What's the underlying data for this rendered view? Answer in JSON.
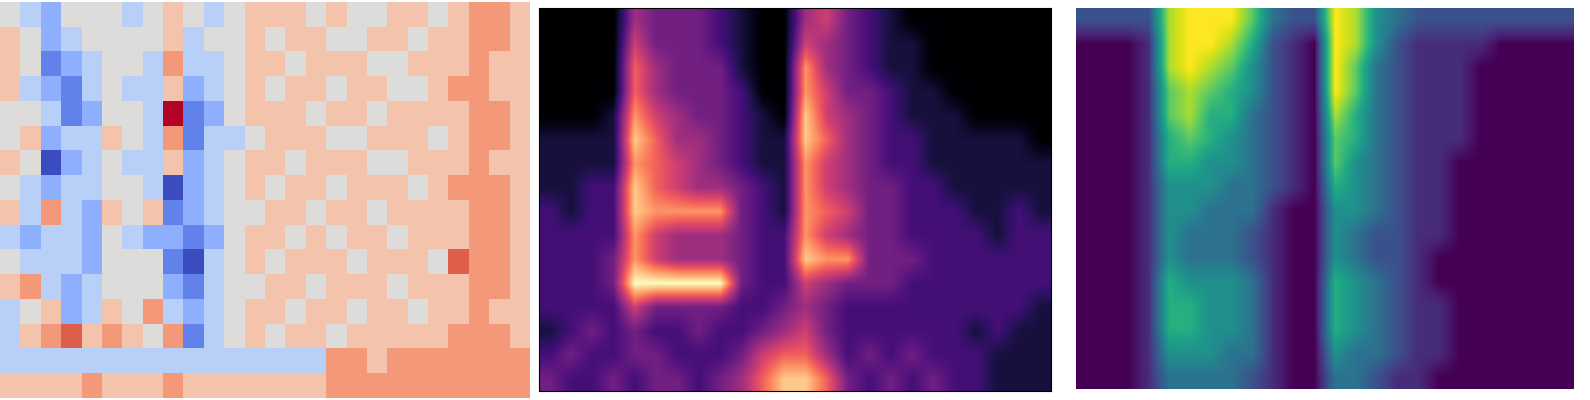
{
  "chart_data": [
    {
      "type": "heatmap",
      "color": "coolwarm",
      "tick_labels": false,
      "cells": [
        [
          0,
          -1,
          -2,
          0,
          0,
          0,
          -1,
          0,
          1,
          0,
          -1,
          0,
          1,
          1,
          1,
          0,
          1,
          0,
          0,
          1,
          1,
          0,
          1,
          2,
          2,
          1
        ],
        [
          1,
          0,
          -2,
          -1,
          0,
          0,
          0,
          0,
          1,
          -1,
          0,
          0,
          1,
          0,
          1,
          1,
          0,
          0,
          1,
          1,
          0,
          1,
          1,
          2,
          2,
          1
        ],
        [
          1,
          0,
          -3,
          -2,
          -1,
          0,
          0,
          -1,
          2,
          -1,
          -1,
          0,
          1,
          1,
          0,
          1,
          1,
          1,
          0,
          0,
          1,
          1,
          1,
          2,
          1,
          1
        ],
        [
          1,
          -1,
          -2,
          -3,
          -1,
          0,
          -1,
          -1,
          1,
          -2,
          -1,
          0,
          1,
          0,
          1,
          1,
          0,
          1,
          1,
          0,
          0,
          1,
          2,
          2,
          1,
          1
        ],
        [
          0,
          0,
          -1,
          -3,
          -2,
          0,
          0,
          -1,
          4,
          -3,
          -2,
          0,
          1,
          1,
          1,
          0,
          1,
          1,
          0,
          1,
          1,
          1,
          1,
          2,
          2,
          1
        ],
        [
          0,
          1,
          -2,
          -1,
          -1,
          1,
          0,
          -1,
          2,
          -3,
          -1,
          -1,
          0,
          1,
          1,
          1,
          0,
          0,
          1,
          1,
          1,
          0,
          1,
          2,
          2,
          1
        ],
        [
          1,
          0,
          -4,
          -2,
          -1,
          0,
          -1,
          -1,
          1,
          -2,
          -1,
          0,
          1,
          1,
          0,
          1,
          1,
          1,
          0,
          0,
          1,
          1,
          1,
          2,
          1,
          1
        ],
        [
          0,
          -1,
          -2,
          -1,
          -1,
          0,
          0,
          -1,
          -4,
          -2,
          -1,
          0,
          1,
          0,
          1,
          1,
          0,
          1,
          1,
          1,
          0,
          1,
          2,
          2,
          2,
          1
        ],
        [
          1,
          -1,
          2,
          -1,
          -2,
          1,
          0,
          1,
          -3,
          -2,
          -1,
          0,
          0,
          1,
          1,
          0,
          1,
          1,
          0,
          1,
          1,
          1,
          1,
          2,
          2,
          1
        ],
        [
          -1,
          -2,
          -1,
          -1,
          -2,
          0,
          -1,
          -2,
          -2,
          -3,
          -2,
          0,
          1,
          1,
          0,
          1,
          0,
          1,
          1,
          0,
          1,
          1,
          1,
          2,
          2,
          1
        ],
        [
          0,
          -1,
          -1,
          -1,
          -2,
          0,
          0,
          0,
          -3,
          -4,
          -1,
          0,
          1,
          0,
          1,
          1,
          1,
          0,
          1,
          1,
          1,
          0,
          3,
          2,
          2,
          1
        ],
        [
          1,
          2,
          -1,
          -2,
          -1,
          0,
          0,
          0,
          -2,
          -3,
          -1,
          0,
          0,
          1,
          1,
          0,
          1,
          1,
          1,
          0,
          1,
          1,
          1,
          2,
          2,
          1
        ],
        [
          -1,
          0,
          1,
          -2,
          -1,
          1,
          0,
          2,
          -1,
          -2,
          -1,
          0,
          1,
          1,
          0,
          1,
          1,
          0,
          1,
          1,
          0,
          1,
          1,
          2,
          1,
          1
        ],
        [
          -1,
          1,
          2,
          3,
          1,
          2,
          1,
          0,
          2,
          -3,
          -1,
          0,
          1,
          0,
          1,
          1,
          0,
          1,
          1,
          1,
          1,
          1,
          2,
          2,
          2,
          1
        ],
        [
          -1,
          -1,
          -1,
          -1,
          -1,
          -1,
          -1,
          -1,
          -1,
          -1,
          -1,
          -1,
          -1,
          -1,
          -1,
          -1,
          2,
          2,
          1,
          2,
          2,
          2,
          2,
          2,
          2,
          2
        ],
        [
          1,
          1,
          1,
          1,
          2,
          1,
          1,
          1,
          2,
          1,
          1,
          1,
          1,
          1,
          1,
          1,
          2,
          2,
          2,
          2,
          2,
          2,
          2,
          2,
          2,
          2
        ]
      ]
    },
    {
      "type": "heatmap",
      "color": "magma",
      "tick_labels": false,
      "cells": [
        [
          0,
          0,
          0,
          0,
          4,
          3,
          3,
          3,
          2,
          1,
          0,
          0,
          4,
          5,
          3,
          2,
          1,
          0,
          0,
          0,
          0,
          0,
          0,
          0
        ],
        [
          0,
          0,
          0,
          0,
          5,
          3,
          3,
          3,
          2,
          1,
          0,
          0,
          5,
          4,
          3,
          2,
          1,
          1,
          0,
          0,
          0,
          0,
          0,
          0
        ],
        [
          0,
          0,
          0,
          0,
          6,
          4,
          3,
          3,
          3,
          1,
          0,
          0,
          7,
          4,
          3,
          2,
          1,
          1,
          0,
          0,
          0,
          0,
          0,
          0
        ],
        [
          0,
          0,
          0,
          0,
          6,
          4,
          3,
          3,
          3,
          2,
          0,
          0,
          7,
          5,
          3,
          3,
          2,
          1,
          1,
          0,
          0,
          0,
          0,
          0
        ],
        [
          0,
          0,
          0,
          1,
          7,
          5,
          4,
          3,
          3,
          2,
          1,
          0,
          8,
          5,
          4,
          3,
          2,
          1,
          1,
          1,
          0,
          0,
          0,
          0
        ],
        [
          1,
          1,
          1,
          1,
          8,
          6,
          4,
          4,
          3,
          2,
          1,
          1,
          8,
          6,
          4,
          3,
          2,
          2,
          1,
          1,
          1,
          1,
          1,
          0
        ],
        [
          1,
          1,
          1,
          1,
          7,
          6,
          5,
          4,
          3,
          2,
          1,
          1,
          7,
          5,
          4,
          3,
          2,
          2,
          1,
          1,
          1,
          1,
          1,
          1
        ],
        [
          1,
          1,
          2,
          2,
          8,
          6,
          5,
          4,
          4,
          3,
          2,
          1,
          7,
          5,
          4,
          3,
          3,
          2,
          2,
          1,
          1,
          1,
          1,
          1
        ],
        [
          2,
          1,
          2,
          2,
          8,
          7,
          7,
          7,
          7,
          3,
          2,
          1,
          7,
          6,
          5,
          3,
          3,
          2,
          2,
          2,
          1,
          1,
          2,
          1
        ],
        [
          2,
          2,
          2,
          2,
          7,
          5,
          4,
          4,
          4,
          3,
          2,
          2,
          7,
          5,
          4,
          3,
          3,
          2,
          2,
          2,
          2,
          1,
          2,
          2
        ],
        [
          2,
          2,
          2,
          3,
          7,
          5,
          4,
          4,
          4,
          3,
          2,
          2,
          8,
          7,
          7,
          3,
          3,
          3,
          2,
          2,
          2,
          2,
          2,
          2
        ],
        [
          2,
          2,
          2,
          3,
          9,
          9,
          9,
          9,
          9,
          3,
          2,
          2,
          5,
          4,
          3,
          3,
          3,
          2,
          2,
          2,
          2,
          2,
          2,
          2
        ],
        [
          2,
          2,
          2,
          2,
          5,
          3,
          3,
          3,
          3,
          2,
          2,
          3,
          4,
          3,
          2,
          2,
          2,
          2,
          2,
          2,
          2,
          2,
          2,
          1
        ],
        [
          1,
          2,
          3,
          2,
          3,
          2,
          2,
          3,
          2,
          2,
          3,
          4,
          5,
          3,
          2,
          2,
          2,
          2,
          2,
          2,
          1,
          2,
          1,
          1
        ],
        [
          2,
          3,
          2,
          2,
          3,
          3,
          2,
          2,
          2,
          3,
          5,
          6,
          6,
          4,
          2,
          3,
          2,
          3,
          2,
          2,
          2,
          1,
          1,
          1
        ],
        [
          3,
          2,
          2,
          3,
          2,
          3,
          3,
          2,
          3,
          4,
          6,
          8,
          8,
          6,
          3,
          2,
          3,
          2,
          3,
          2,
          2,
          1,
          1,
          1
        ]
      ]
    },
    {
      "type": "heatmap",
      "color": "viridis",
      "tick_labels": false,
      "cells": [
        [
          2,
          2,
          2,
          2,
          7,
          8,
          8,
          8,
          6,
          3,
          2,
          2,
          8,
          7,
          4,
          3,
          2,
          2,
          2,
          2,
          2,
          2,
          2,
          2
        ],
        [
          0,
          0,
          0,
          1,
          7,
          8,
          8,
          7,
          5,
          2,
          1,
          0,
          8,
          7,
          4,
          2,
          1,
          1,
          1,
          1,
          0,
          0,
          0,
          0
        ],
        [
          0,
          0,
          0,
          1,
          7,
          8,
          7,
          6,
          4,
          2,
          1,
          0,
          8,
          6,
          3,
          2,
          1,
          1,
          1,
          0,
          0,
          0,
          0,
          0
        ],
        [
          0,
          0,
          0,
          1,
          6,
          7,
          6,
          5,
          4,
          2,
          1,
          0,
          8,
          6,
          3,
          2,
          1,
          1,
          1,
          0,
          0,
          0,
          0,
          0
        ],
        [
          0,
          0,
          0,
          1,
          6,
          7,
          5,
          5,
          3,
          2,
          1,
          0,
          7,
          5,
          3,
          2,
          1,
          1,
          1,
          0,
          0,
          0,
          0,
          0
        ],
        [
          0,
          0,
          0,
          1,
          5,
          6,
          5,
          4,
          3,
          2,
          1,
          0,
          6,
          5,
          3,
          2,
          1,
          1,
          1,
          0,
          0,
          0,
          0,
          0
        ],
        [
          0,
          0,
          0,
          1,
          5,
          5,
          4,
          4,
          3,
          2,
          1,
          0,
          6,
          4,
          3,
          2,
          1,
          1,
          0,
          0,
          0,
          0,
          0,
          0
        ],
        [
          0,
          0,
          0,
          1,
          4,
          4,
          4,
          3,
          3,
          2,
          1,
          0,
          5,
          4,
          3,
          2,
          1,
          1,
          0,
          0,
          0,
          0,
          0,
          0
        ],
        [
          0,
          0,
          0,
          1,
          4,
          4,
          3,
          3,
          3,
          1,
          0,
          0,
          4,
          4,
          3,
          2,
          1,
          1,
          0,
          0,
          0,
          0,
          0,
          0
        ],
        [
          0,
          0,
          0,
          1,
          4,
          3,
          3,
          3,
          2,
          1,
          0,
          0,
          4,
          3,
          2,
          2,
          1,
          1,
          0,
          0,
          0,
          0,
          0,
          0
        ],
        [
          0,
          0,
          0,
          1,
          4,
          3,
          3,
          3,
          2,
          1,
          0,
          0,
          4,
          3,
          2,
          2,
          1,
          0,
          0,
          0,
          0,
          0,
          0,
          0
        ],
        [
          0,
          0,
          0,
          1,
          5,
          4,
          4,
          4,
          3,
          1,
          0,
          0,
          5,
          4,
          3,
          2,
          1,
          0,
          0,
          0,
          0,
          0,
          0,
          0
        ],
        [
          0,
          0,
          0,
          1,
          5,
          5,
          4,
          4,
          3,
          1,
          0,
          0,
          5,
          4,
          3,
          2,
          1,
          1,
          0,
          0,
          0,
          0,
          0,
          0
        ],
        [
          0,
          0,
          0,
          1,
          5,
          5,
          4,
          4,
          3,
          1,
          0,
          0,
          5,
          4,
          3,
          2,
          1,
          1,
          0,
          0,
          0,
          0,
          0,
          0
        ],
        [
          0,
          0,
          0,
          1,
          4,
          4,
          4,
          3,
          3,
          1,
          0,
          0,
          4,
          3,
          3,
          2,
          1,
          1,
          0,
          0,
          0,
          0,
          0,
          0
        ],
        [
          0,
          0,
          0,
          1,
          3,
          3,
          3,
          3,
          2,
          1,
          0,
          0,
          3,
          3,
          2,
          1,
          1,
          0,
          0,
          0,
          0,
          0,
          0,
          0
        ]
      ]
    }
  ]
}
